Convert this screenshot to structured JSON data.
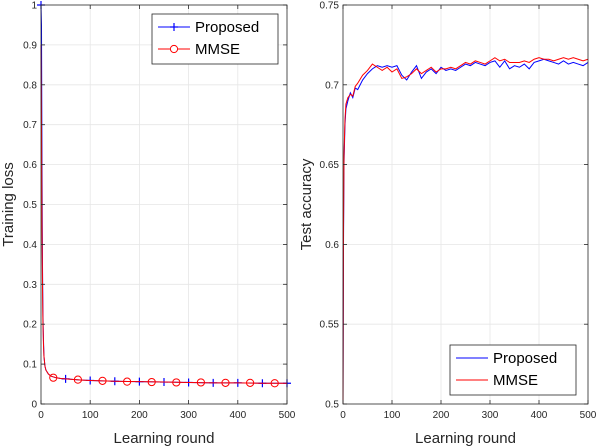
{
  "chart_data": [
    {
      "type": "line",
      "xlabel": "Learning round",
      "ylabel": "Training loss",
      "xlim": [
        0,
        500
      ],
      "ylim": [
        0,
        1
      ],
      "xticks": [
        0,
        100,
        200,
        300,
        400,
        500
      ],
      "yticks": [
        0,
        0.1,
        0.2,
        0.3,
        0.4,
        0.5,
        0.6,
        0.7,
        0.8,
        0.9,
        1
      ],
      "xtick_labels": [
        "0",
        "100",
        "200",
        "300",
        "400",
        "500"
      ],
      "ytick_labels": [
        "0",
        "0.1",
        "0.2",
        "0.3",
        "0.4",
        "0.5",
        "0.6",
        "0.7",
        "0.8",
        "0.9",
        "1"
      ],
      "grid": true,
      "legend_position": "top-right",
      "series": [
        {
          "name": "Proposed",
          "color": "#0000ff",
          "marker": "plus",
          "x": [
            0,
            1,
            2,
            3,
            4,
            5,
            6,
            8,
            10,
            15,
            20,
            30,
            40,
            60,
            80,
            100,
            150,
            200,
            250,
            300,
            350,
            400,
            450,
            500
          ],
          "y": [
            1.0,
            0.95,
            0.6,
            0.35,
            0.22,
            0.16,
            0.12,
            0.095,
            0.085,
            0.075,
            0.07,
            0.066,
            0.064,
            0.062,
            0.06,
            0.059,
            0.057,
            0.056,
            0.055,
            0.054,
            0.053,
            0.053,
            0.052,
            0.052
          ],
          "marker_x": [
            0,
            50,
            100,
            150,
            200,
            250,
            300,
            350,
            400,
            450,
            500
          ],
          "marker_y": [
            1.0,
            0.063,
            0.059,
            0.057,
            0.056,
            0.055,
            0.054,
            0.053,
            0.053,
            0.052,
            0.052
          ]
        },
        {
          "name": "MMSE",
          "color": "#ff0000",
          "marker": "circle",
          "x": [
            0,
            1,
            2,
            3,
            4,
            5,
            6,
            8,
            10,
            15,
            20,
            30,
            40,
            60,
            80,
            100,
            150,
            200,
            250,
            300,
            350,
            400,
            450,
            500
          ],
          "y": [
            0.9,
            0.7,
            0.45,
            0.3,
            0.2,
            0.15,
            0.12,
            0.095,
            0.085,
            0.075,
            0.07,
            0.066,
            0.064,
            0.062,
            0.06,
            0.059,
            0.057,
            0.056,
            0.055,
            0.054,
            0.053,
            0.053,
            0.052,
            0.052
          ],
          "marker_x": [
            25,
            75,
            125,
            175,
            225,
            275,
            325,
            375,
            425,
            475
          ],
          "marker_y": [
            0.066,
            0.061,
            0.058,
            0.056,
            0.055,
            0.054,
            0.054,
            0.053,
            0.053,
            0.052
          ]
        }
      ]
    },
    {
      "type": "line",
      "xlabel": "Learning round",
      "ylabel": "Test accuracy",
      "xlim": [
        0,
        500
      ],
      "ylim": [
        0.5,
        0.75
      ],
      "xticks": [
        0,
        100,
        200,
        300,
        400,
        500
      ],
      "yticks": [
        0.5,
        0.55,
        0.6,
        0.65,
        0.7,
        0.75
      ],
      "xtick_labels": [
        "0",
        "100",
        "200",
        "300",
        "400",
        "500"
      ],
      "ytick_labels": [
        "0.5",
        "0.55",
        "0.6",
        "0.65",
        "0.7",
        "0.75"
      ],
      "grid": true,
      "legend_position": "bottom-right",
      "series": [
        {
          "name": "Proposed",
          "color": "#0000ff",
          "x": [
            0,
            1,
            2,
            4,
            6,
            10,
            15,
            20,
            25,
            30,
            40,
            50,
            60,
            70,
            80,
            90,
            100,
            110,
            120,
            130,
            140,
            150,
            160,
            170,
            180,
            190,
            200,
            210,
            220,
            230,
            240,
            250,
            260,
            270,
            280,
            290,
            300,
            310,
            320,
            330,
            340,
            350,
            360,
            370,
            380,
            390,
            400,
            410,
            420,
            430,
            440,
            450,
            460,
            470,
            480,
            490,
            500
          ],
          "y": [
            0.5,
            0.6,
            0.65,
            0.675,
            0.685,
            0.69,
            0.695,
            0.692,
            0.698,
            0.697,
            0.703,
            0.707,
            0.71,
            0.712,
            0.711,
            0.712,
            0.711,
            0.712,
            0.706,
            0.703,
            0.708,
            0.712,
            0.704,
            0.708,
            0.71,
            0.707,
            0.711,
            0.709,
            0.71,
            0.709,
            0.711,
            0.713,
            0.712,
            0.714,
            0.713,
            0.712,
            0.714,
            0.715,
            0.711,
            0.715,
            0.71,
            0.712,
            0.711,
            0.713,
            0.71,
            0.714,
            0.715,
            0.716,
            0.715,
            0.714,
            0.713,
            0.715,
            0.713,
            0.714,
            0.713,
            0.712,
            0.714
          ]
        },
        {
          "name": "MMSE",
          "color": "#ff0000",
          "x": [
            0,
            1,
            2,
            4,
            6,
            10,
            15,
            20,
            25,
            30,
            40,
            50,
            60,
            70,
            80,
            90,
            100,
            110,
            120,
            130,
            140,
            150,
            160,
            170,
            180,
            190,
            200,
            210,
            220,
            230,
            240,
            250,
            260,
            270,
            280,
            290,
            300,
            310,
            320,
            330,
            340,
            350,
            360,
            370,
            380,
            390,
            400,
            410,
            420,
            430,
            440,
            450,
            460,
            470,
            480,
            490,
            500
          ],
          "y": [
            0.5,
            0.61,
            0.655,
            0.678,
            0.688,
            0.692,
            0.694,
            0.693,
            0.699,
            0.701,
            0.706,
            0.709,
            0.713,
            0.711,
            0.709,
            0.711,
            0.708,
            0.71,
            0.704,
            0.705,
            0.707,
            0.71,
            0.707,
            0.709,
            0.711,
            0.708,
            0.71,
            0.71,
            0.711,
            0.71,
            0.712,
            0.714,
            0.713,
            0.715,
            0.714,
            0.713,
            0.715,
            0.717,
            0.715,
            0.716,
            0.714,
            0.714,
            0.714,
            0.715,
            0.714,
            0.716,
            0.717,
            0.716,
            0.716,
            0.715,
            0.716,
            0.717,
            0.716,
            0.717,
            0.716,
            0.715,
            0.716
          ]
        }
      ]
    }
  ]
}
